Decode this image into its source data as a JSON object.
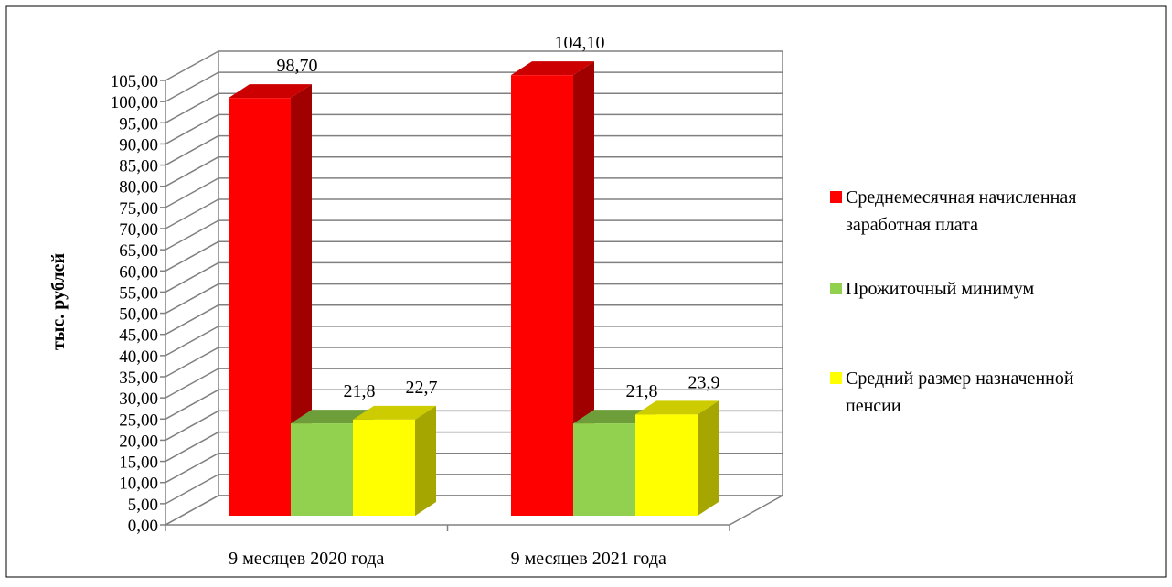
{
  "chart_data": {
    "type": "bar",
    "ylabel": "тыс. рублей",
    "ylim": [
      0,
      105
    ],
    "y_tick_step": 5,
    "y_tick_labels": [
      "0,00",
      "5,00",
      "10,00",
      "15,00",
      "20,00",
      "25,00",
      "30,00",
      "35,00",
      "40,00",
      "45,00",
      "50,00",
      "55,00",
      "60,00",
      "65,00",
      "70,00",
      "75,00",
      "80,00",
      "85,00",
      "90,00",
      "95,00",
      "100,00",
      "105,00"
    ],
    "categories": [
      "9 месяцев 2020 года",
      "9 месяцев 2021 года"
    ],
    "series": [
      {
        "name": "Среднемесячная начисленная заработная плата",
        "legend_lines": [
          "Среднемесячная начисленная",
          "заработная плата"
        ],
        "values": [
          98.7,
          104.1
        ],
        "data_labels": [
          "98,70",
          "104,10"
        ],
        "color": "#ff0000",
        "top_color": "#cc0000",
        "side_color": "#a00000"
      },
      {
        "name": "Прожиточный минимум",
        "legend_lines": [
          "Прожиточный минимум"
        ],
        "values": [
          21.8,
          21.8
        ],
        "data_labels": [
          "21,8",
          "21,8"
        ],
        "color": "#92d050",
        "top_color": "#6e9e3a",
        "side_color": "#6e9e3a"
      },
      {
        "name": "Средний размер назначенной пенсии",
        "legend_lines": [
          "Средний размер назначенной",
          "пенсии"
        ],
        "values": [
          22.7,
          23.9
        ],
        "data_labels": [
          "22,7",
          "23,9"
        ],
        "color": "#ffff00",
        "top_color": "#cccc00",
        "side_color": "#a6a600"
      }
    ],
    "grid": true,
    "legend_position": "right",
    "style": "3d-clustered-column"
  }
}
